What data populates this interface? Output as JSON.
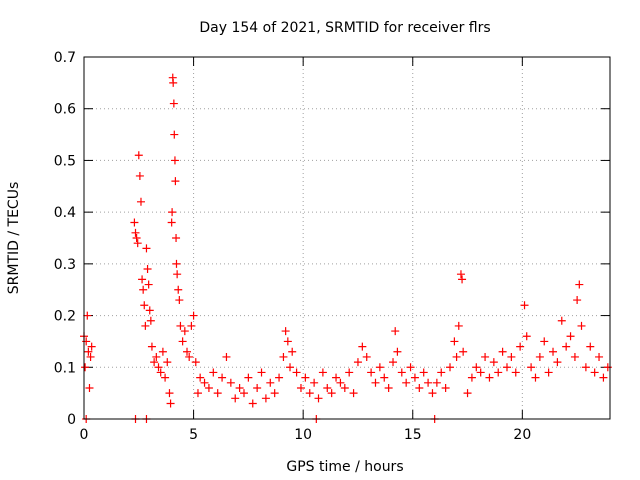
{
  "chart_data": {
    "type": "scatter",
    "title": "Day 154 of 2021, SRMTID for receiver flrs",
    "xlabel": "GPS time / hours",
    "ylabel": "SRMTID / TECUs",
    "xlim": [
      0,
      24
    ],
    "ylim": [
      0,
      0.7
    ],
    "grid": true,
    "x_ticks": [
      0,
      5,
      10,
      15,
      20
    ],
    "y_ticks": [
      0,
      0.1,
      0.2,
      0.3,
      0.4,
      0.5,
      0.6,
      0.7
    ],
    "x_tick_labels": [
      "0",
      "5",
      "10",
      "15",
      "20"
    ],
    "y_tick_labels": [
      "0",
      "0.1",
      "0.2",
      "0.3",
      "0.4",
      "0.5",
      "0.6",
      "0.7"
    ],
    "marker": "+",
    "color": "#ff0000",
    "series": [
      {
        "name": "SRMTID",
        "points": [
          [
            0.0,
            0.16
          ],
          [
            0.05,
            0.1
          ],
          [
            0.1,
            0.15
          ],
          [
            0.15,
            0.2
          ],
          [
            0.2,
            0.13
          ],
          [
            0.25,
            0.06
          ],
          [
            0.3,
            0.12
          ],
          [
            0.35,
            0.14
          ],
          [
            2.3,
            0.38
          ],
          [
            2.35,
            0.36
          ],
          [
            2.4,
            0.35
          ],
          [
            2.45,
            0.34
          ],
          [
            2.5,
            0.51
          ],
          [
            2.55,
            0.47
          ],
          [
            2.6,
            0.42
          ],
          [
            2.65,
            0.27
          ],
          [
            2.7,
            0.25
          ],
          [
            2.75,
            0.22
          ],
          [
            2.8,
            0.18
          ],
          [
            2.85,
            0.33
          ],
          [
            2.9,
            0.29
          ],
          [
            2.95,
            0.26
          ],
          [
            3.0,
            0.21
          ],
          [
            3.05,
            0.19
          ],
          [
            3.1,
            0.14
          ],
          [
            3.2,
            0.11
          ],
          [
            3.3,
            0.12
          ],
          [
            3.4,
            0.1
          ],
          [
            3.5,
            0.09
          ],
          [
            3.6,
            0.13
          ],
          [
            3.7,
            0.08
          ],
          [
            3.8,
            0.11
          ],
          [
            3.9,
            0.05
          ],
          [
            3.95,
            0.03
          ],
          [
            4.0,
            0.38
          ],
          [
            4.02,
            0.4
          ],
          [
            4.05,
            0.66
          ],
          [
            4.07,
            0.65
          ],
          [
            4.1,
            0.61
          ],
          [
            4.12,
            0.55
          ],
          [
            4.15,
            0.5
          ],
          [
            4.17,
            0.46
          ],
          [
            4.2,
            0.35
          ],
          [
            4.22,
            0.3
          ],
          [
            4.25,
            0.28
          ],
          [
            4.3,
            0.25
          ],
          [
            4.35,
            0.23
          ],
          [
            4.4,
            0.18
          ],
          [
            4.5,
            0.15
          ],
          [
            4.6,
            0.17
          ],
          [
            4.7,
            0.13
          ],
          [
            4.8,
            0.12
          ],
          [
            4.9,
            0.18
          ],
          [
            5.0,
            0.2
          ],
          [
            5.1,
            0.11
          ],
          [
            5.2,
            0.05
          ],
          [
            5.3,
            0.08
          ],
          [
            5.5,
            0.07
          ],
          [
            5.7,
            0.06
          ],
          [
            5.9,
            0.09
          ],
          [
            6.1,
            0.05
          ],
          [
            6.3,
            0.08
          ],
          [
            6.5,
            0.12
          ],
          [
            6.7,
            0.07
          ],
          [
            6.9,
            0.04
          ],
          [
            7.1,
            0.06
          ],
          [
            7.3,
            0.05
          ],
          [
            7.5,
            0.08
          ],
          [
            7.7,
            0.03
          ],
          [
            7.9,
            0.06
          ],
          [
            8.1,
            0.09
          ],
          [
            8.3,
            0.04
          ],
          [
            8.5,
            0.07
          ],
          [
            8.7,
            0.05
          ],
          [
            8.9,
            0.08
          ],
          [
            9.1,
            0.12
          ],
          [
            9.2,
            0.17
          ],
          [
            9.3,
            0.15
          ],
          [
            9.4,
            0.1
          ],
          [
            9.5,
            0.13
          ],
          [
            9.7,
            0.09
          ],
          [
            9.9,
            0.06
          ],
          [
            10.1,
            0.08
          ],
          [
            10.3,
            0.05
          ],
          [
            10.5,
            0.07
          ],
          [
            10.7,
            0.04
          ],
          [
            10.9,
            0.09
          ],
          [
            11.1,
            0.06
          ],
          [
            11.3,
            0.05
          ],
          [
            11.5,
            0.08
          ],
          [
            11.7,
            0.07
          ],
          [
            11.9,
            0.06
          ],
          [
            12.1,
            0.09
          ],
          [
            12.3,
            0.05
          ],
          [
            12.5,
            0.11
          ],
          [
            12.7,
            0.14
          ],
          [
            12.9,
            0.12
          ],
          [
            13.1,
            0.09
          ],
          [
            13.3,
            0.07
          ],
          [
            13.5,
            0.1
          ],
          [
            13.7,
            0.08
          ],
          [
            13.9,
            0.06
          ],
          [
            14.1,
            0.11
          ],
          [
            14.2,
            0.17
          ],
          [
            14.3,
            0.13
          ],
          [
            14.5,
            0.09
          ],
          [
            14.7,
            0.07
          ],
          [
            14.9,
            0.1
          ],
          [
            15.1,
            0.08
          ],
          [
            15.3,
            0.06
          ],
          [
            15.5,
            0.09
          ],
          [
            15.7,
            0.07
          ],
          [
            15.9,
            0.05
          ],
          [
            16.1,
            0.07
          ],
          [
            16.3,
            0.09
          ],
          [
            16.5,
            0.06
          ],
          [
            16.7,
            0.1
          ],
          [
            16.9,
            0.15
          ],
          [
            17.0,
            0.12
          ],
          [
            17.1,
            0.18
          ],
          [
            17.2,
            0.28
          ],
          [
            17.25,
            0.27
          ],
          [
            17.3,
            0.13
          ],
          [
            17.5,
            0.05
          ],
          [
            17.7,
            0.08
          ],
          [
            17.9,
            0.1
          ],
          [
            18.1,
            0.09
          ],
          [
            18.3,
            0.12
          ],
          [
            18.5,
            0.08
          ],
          [
            18.7,
            0.11
          ],
          [
            18.9,
            0.09
          ],
          [
            19.1,
            0.13
          ],
          [
            19.3,
            0.1
          ],
          [
            19.5,
            0.12
          ],
          [
            19.7,
            0.09
          ],
          [
            19.9,
            0.14
          ],
          [
            20.1,
            0.22
          ],
          [
            20.2,
            0.16
          ],
          [
            20.4,
            0.1
          ],
          [
            20.6,
            0.08
          ],
          [
            20.8,
            0.12
          ],
          [
            21.0,
            0.15
          ],
          [
            21.2,
            0.09
          ],
          [
            21.4,
            0.13
          ],
          [
            21.6,
            0.11
          ],
          [
            21.8,
            0.19
          ],
          [
            22.0,
            0.14
          ],
          [
            22.2,
            0.16
          ],
          [
            22.4,
            0.12
          ],
          [
            22.5,
            0.23
          ],
          [
            22.6,
            0.26
          ],
          [
            22.7,
            0.18
          ],
          [
            22.9,
            0.1
          ],
          [
            23.1,
            0.14
          ],
          [
            23.3,
            0.09
          ],
          [
            23.5,
            0.12
          ],
          [
            23.7,
            0.08
          ],
          [
            23.9,
            0.1
          ],
          [
            0.1,
            0.0
          ],
          [
            2.35,
            0.0
          ],
          [
            2.85,
            0.0
          ],
          [
            10.6,
            0.0
          ],
          [
            16.0,
            0.0
          ]
        ]
      }
    ]
  }
}
